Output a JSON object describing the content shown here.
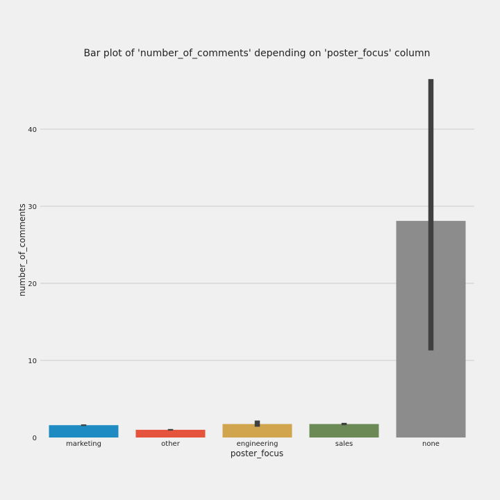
{
  "chart_data": {
    "type": "bar",
    "title": "Bar plot of 'number_of_comments' depending on 'poster_focus' column",
    "xlabel": "poster_focus",
    "ylabel": "number_of_comments",
    "categories": [
      "marketing",
      "other",
      "engineering",
      "sales",
      "none"
    ],
    "values": [
      1.6,
      1.0,
      1.75,
      1.75,
      28.1
    ],
    "error_low": [
      1.5,
      0.9,
      1.4,
      1.6,
      11.3
    ],
    "error_high": [
      1.7,
      1.1,
      2.2,
      1.9,
      46.5
    ],
    "colors": [
      "#1f8bc3",
      "#e5533c",
      "#d0a54d",
      "#6b8a56",
      "#8c8c8c"
    ],
    "error_color": "#404040",
    "yticks": [
      0,
      10,
      20,
      30,
      40
    ],
    "ylim": [
      0,
      47
    ],
    "grid": true
  }
}
